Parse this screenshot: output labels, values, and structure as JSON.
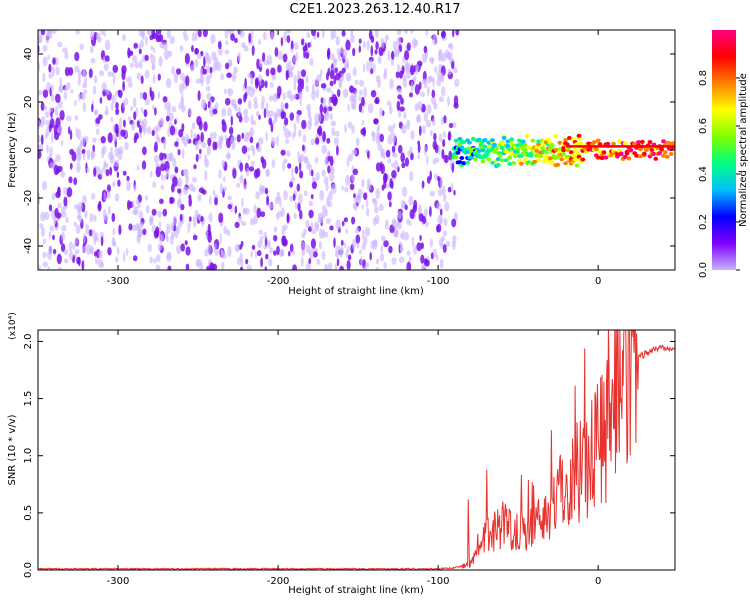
{
  "title": "C2E1.2023.263.12.40.R17",
  "colors": {
    "line": "#e8322e",
    "speckle": "#7a10e6",
    "colormap": [
      "#c9b3ff",
      "#8000ff",
      "#0000ff",
      "#00c0ff",
      "#00ff80",
      "#80ff00",
      "#ffff00",
      "#ff8000",
      "#ff0000",
      "#ff0080"
    ]
  },
  "chart_data": [
    {
      "type": "heatmap",
      "xlabel": "Height of straight line (km)",
      "ylabel": "Frequency (Hz)",
      "xlim": [
        -350,
        48
      ],
      "ylim": [
        -50,
        50
      ],
      "xticks": [
        -300,
        -200,
        -100,
        0
      ],
      "yticks": [
        40,
        20,
        0,
        -20,
        -40
      ],
      "grid": false,
      "noise_region_x": [
        -350,
        -88
      ],
      "signal_band_hz": [
        -4,
        4
      ],
      "signal_peak_hz": 1.5,
      "colorbar": {
        "label": "Normalized spectral amplitude",
        "range": [
          0,
          1
        ],
        "ticks": [
          "0.0",
          "0.2",
          "0.4",
          "0.6",
          "0.8"
        ]
      }
    },
    {
      "type": "line",
      "xlabel": "Height of straight line (km)",
      "ylabel": "SNR (10 * v/v)",
      "y_multiplier": "(x10⁴)",
      "xlim": [
        -350,
        48
      ],
      "ylim": [
        0,
        2.1
      ],
      "xticks": [
        -300,
        -200,
        -100,
        0
      ],
      "yticks": [
        "0.0",
        "0.5",
        "1.0",
        "1.5",
        "2.0"
      ],
      "grid": false,
      "series": [
        {
          "x": [
            -350,
            -200,
            -100,
            -90,
            -80,
            -75,
            -70,
            -65,
            -60,
            -55,
            -50,
            -45,
            -40,
            -35,
            -30,
            -25,
            -20,
            -15,
            -10,
            -5,
            0,
            5,
            10,
            15,
            20,
            25,
            30,
            35,
            40,
            48
          ],
          "values": [
            0.01,
            0.01,
            0.01,
            0.02,
            0.05,
            0.15,
            0.3,
            0.35,
            0.4,
            0.38,
            0.35,
            0.35,
            0.4,
            0.45,
            0.55,
            0.65,
            0.75,
            0.85,
            0.95,
            1.0,
            1.15,
            1.3,
            1.5,
            1.65,
            1.78,
            1.85,
            1.9,
            1.93,
            1.95,
            1.95
          ]
        }
      ]
    }
  ]
}
